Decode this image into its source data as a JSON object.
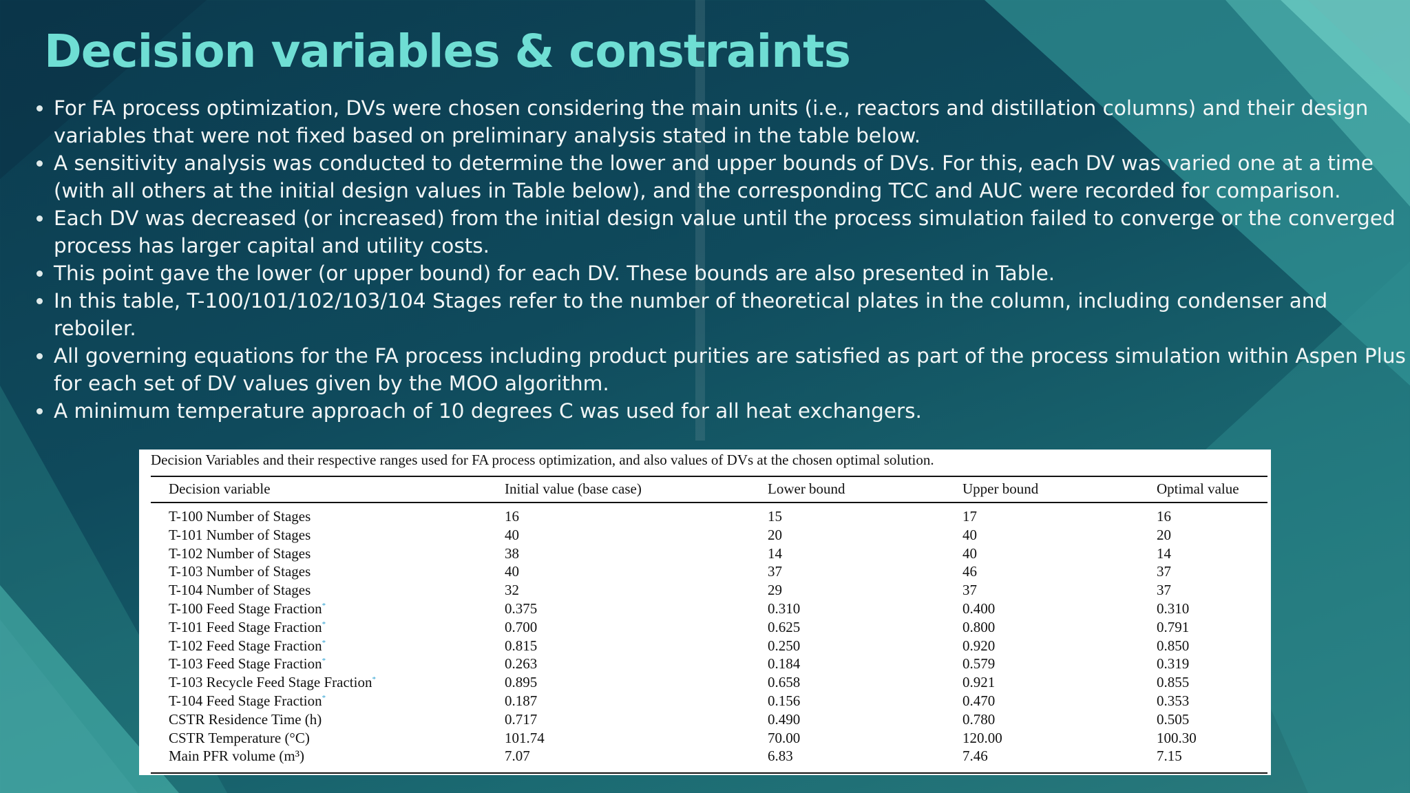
{
  "header": {
    "title": "Decision variables & constraints"
  },
  "bullets": [
    "For FA process optimization, DVs were chosen considering the main units (i.e., reactors and distillation columns) and their design variables that were not fixed based on preliminary analysis stated in the table below.",
    "A sensitivity analysis was conducted to determine the lower and upper bounds of DVs. For this, each DV was varied one at a time (with all others at the initial design values in Table below), and the corresponding TCC and AUC were recorded for comparison.",
    "Each DV was decreased (or increased) from the initial design value until the process simulation failed to converge or the converged process has larger capital and utility costs.",
    "This point gave the lower (or upper bound) for each DV. These bounds are also presented in Table.",
    "In this table, T-100/101/102/103/104 Stages refer to the number of theoretical plates in the column, including condenser and reboiler.",
    "All governing equations for the FA process including product purities are satisfied as part of the process simulation within Aspen Plus for each set of DV values given by the MOO algorithm.",
    "A minimum temperature approach of 10 degrees C was used for all heat exchangers."
  ],
  "table": {
    "caption": "Decision Variables and their respective ranges used for FA process optimization, and also values of DVs at the chosen optimal solution.",
    "header": [
      "Decision variable",
      "Initial value (base case)",
      "Lower bound",
      "Upper bound",
      "Optimal value"
    ],
    "rows": [
      {
        "cells": [
          "T-100 Number of Stages",
          "16",
          "15",
          "17",
          "16"
        ]
      },
      {
        "cells": [
          "T-101 Number of Stages",
          "40",
          "20",
          "40",
          "20"
        ]
      },
      {
        "cells": [
          "T-102 Number of Stages",
          "38",
          "14",
          "40",
          "14"
        ]
      },
      {
        "cells": [
          "T-103 Number of Stages",
          "40",
          "37",
          "46",
          "37"
        ]
      },
      {
        "cells": [
          "T-104 Number of Stages",
          "32",
          "29",
          "37",
          "37"
        ]
      },
      {
        "cells": [
          "T-100 Feed Stage Fraction",
          "0.375",
          "0.310",
          "0.400",
          "0.310"
        ],
        "note": "*"
      },
      {
        "cells": [
          "T-101 Feed Stage Fraction",
          "0.700",
          "0.625",
          "0.800",
          "0.791"
        ],
        "note": "*"
      },
      {
        "cells": [
          "T-102 Feed Stage Fraction",
          "0.815",
          "0.250",
          "0.920",
          "0.850"
        ],
        "note": "*"
      },
      {
        "cells": [
          "T-103 Feed Stage Fraction",
          "0.263",
          "0.184",
          "0.579",
          "0.319"
        ],
        "note": "*"
      },
      {
        "cells": [
          "T-103 Recycle Feed Stage Fraction",
          "0.895",
          "0.658",
          "0.921",
          "0.855"
        ],
        "note": "*"
      },
      {
        "cells": [
          "T-104 Feed Stage Fraction",
          "0.187",
          "0.156",
          "0.470",
          "0.353"
        ],
        "note": "*"
      },
      {
        "cells": [
          "CSTR Residence Time (h)",
          "0.717",
          "0.490",
          "0.780",
          "0.505"
        ]
      },
      {
        "cells": [
          "CSTR Temperature (°C)",
          "101.74",
          "70.00",
          "120.00",
          "100.30"
        ]
      },
      {
        "cells": [
          "Main PFR volume (m³)",
          "7.07",
          "6.83",
          "7.46",
          "7.15"
        ]
      }
    ]
  }
}
